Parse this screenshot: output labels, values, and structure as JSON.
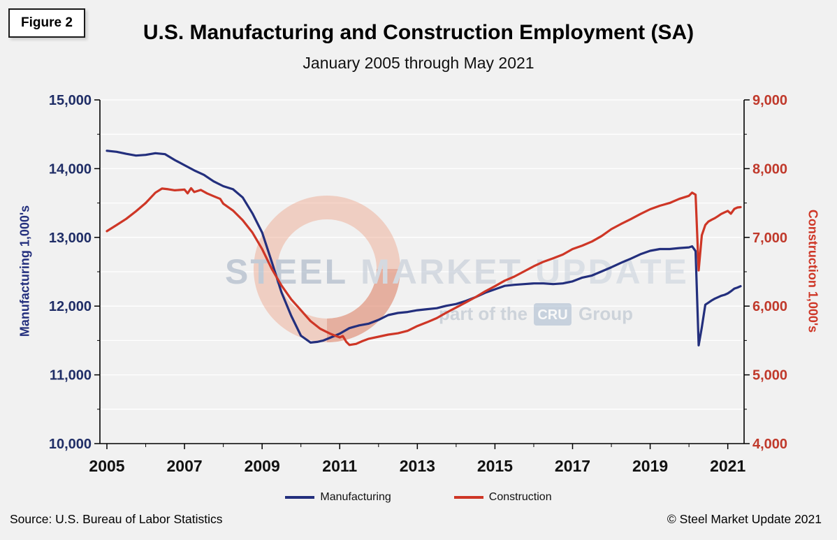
{
  "figure_label": "Figure 2",
  "title": "U.S. Manufacturing and Construction Employment (SA)",
  "subtitle": "January 2005 through May 2021",
  "source": "Source: U.S. Bureau  of Labor Statistics",
  "copyright": "© Steel Market Update 2021",
  "watermark": {
    "word1": "STEEL",
    "word2": "MARKET",
    "word3": "UPDATE",
    "line2_pre": "part of the",
    "line2_box": "CRU",
    "line2_post": "Group"
  },
  "legend": [
    {
      "label": "Manufacturing",
      "color": "#232f7d"
    },
    {
      "label": "Construction",
      "color": "#ce3626"
    }
  ],
  "chart_data": {
    "type": "line",
    "title": "U.S. Manufacturing and Construction Employment (SA)",
    "subtitle": "January 2005 through May 2021",
    "x_min": 2004.82,
    "x_max": 2021.42,
    "x_ticks": [
      2005,
      2007,
      2009,
      2011,
      2013,
      2015,
      2017,
      2019,
      2021
    ],
    "minor_year_start": 2005,
    "minor_year_end": 2021,
    "grid_step": 500,
    "grid_color": "#ffffff",
    "axis_color": "#000000",
    "x_tick_color": "#111111",
    "left_axis": {
      "label": "Manufacturing 1,000's",
      "min": 10000,
      "max": 15000,
      "tick_step": 1000,
      "color": "#1f2d66"
    },
    "right_axis": {
      "label": "Construction 1,000's",
      "min": 4000,
      "max": 9000,
      "tick_step": 1000,
      "color": "#c0392b"
    },
    "series": [
      {
        "name": "Manufacturing",
        "axis": "left",
        "color": "#232f7d",
        "points": [
          [
            2005.0,
            14260
          ],
          [
            2005.25,
            14245
          ],
          [
            2005.5,
            14215
          ],
          [
            2005.75,
            14190
          ],
          [
            2006.0,
            14200
          ],
          [
            2006.25,
            14225
          ],
          [
            2006.5,
            14210
          ],
          [
            2006.75,
            14125
          ],
          [
            2007.0,
            14050
          ],
          [
            2007.25,
            13975
          ],
          [
            2007.5,
            13910
          ],
          [
            2007.75,
            13815
          ],
          [
            2008.0,
            13745
          ],
          [
            2008.25,
            13700
          ],
          [
            2008.5,
            13580
          ],
          [
            2008.75,
            13350
          ],
          [
            2009.0,
            13070
          ],
          [
            2009.25,
            12640
          ],
          [
            2009.5,
            12200
          ],
          [
            2009.75,
            11860
          ],
          [
            2010.0,
            11570
          ],
          [
            2010.25,
            11470
          ],
          [
            2010.42,
            11480
          ],
          [
            2010.58,
            11500
          ],
          [
            2010.75,
            11540
          ],
          [
            2011.0,
            11600
          ],
          [
            2011.25,
            11680
          ],
          [
            2011.5,
            11720
          ],
          [
            2011.75,
            11745
          ],
          [
            2012.0,
            11800
          ],
          [
            2012.25,
            11870
          ],
          [
            2012.5,
            11900
          ],
          [
            2012.75,
            11915
          ],
          [
            2013.0,
            11940
          ],
          [
            2013.25,
            11955
          ],
          [
            2013.5,
            11970
          ],
          [
            2013.75,
            12005
          ],
          [
            2014.0,
            12030
          ],
          [
            2014.25,
            12075
          ],
          [
            2014.5,
            12130
          ],
          [
            2014.75,
            12195
          ],
          [
            2015.0,
            12245
          ],
          [
            2015.25,
            12295
          ],
          [
            2015.5,
            12310
          ],
          [
            2015.75,
            12320
          ],
          [
            2016.0,
            12330
          ],
          [
            2016.25,
            12330
          ],
          [
            2016.5,
            12320
          ],
          [
            2016.75,
            12330
          ],
          [
            2017.0,
            12360
          ],
          [
            2017.25,
            12415
          ],
          [
            2017.5,
            12445
          ],
          [
            2017.75,
            12505
          ],
          [
            2018.0,
            12565
          ],
          [
            2018.25,
            12630
          ],
          [
            2018.5,
            12690
          ],
          [
            2018.75,
            12755
          ],
          [
            2019.0,
            12805
          ],
          [
            2019.25,
            12830
          ],
          [
            2019.5,
            12830
          ],
          [
            2019.75,
            12845
          ],
          [
            2020.0,
            12855
          ],
          [
            2020.08,
            12870
          ],
          [
            2020.17,
            12800
          ],
          [
            2020.25,
            11430
          ],
          [
            2020.33,
            11690
          ],
          [
            2020.42,
            12020
          ],
          [
            2020.5,
            12050
          ],
          [
            2020.58,
            12080
          ],
          [
            2020.67,
            12110
          ],
          [
            2020.75,
            12130
          ],
          [
            2020.83,
            12150
          ],
          [
            2020.92,
            12165
          ],
          [
            2021.0,
            12185
          ],
          [
            2021.08,
            12215
          ],
          [
            2021.17,
            12255
          ],
          [
            2021.25,
            12270
          ],
          [
            2021.33,
            12290
          ]
        ]
      },
      {
        "name": "Construction",
        "axis": "right",
        "color": "#ce3626",
        "points": [
          [
            2005.0,
            7090
          ],
          [
            2005.25,
            7180
          ],
          [
            2005.5,
            7270
          ],
          [
            2005.75,
            7380
          ],
          [
            2006.0,
            7500
          ],
          [
            2006.25,
            7650
          ],
          [
            2006.42,
            7710
          ],
          [
            2006.58,
            7700
          ],
          [
            2006.75,
            7685
          ],
          [
            2007.0,
            7695
          ],
          [
            2007.08,
            7640
          ],
          [
            2007.17,
            7715
          ],
          [
            2007.25,
            7660
          ],
          [
            2007.42,
            7690
          ],
          [
            2007.58,
            7640
          ],
          [
            2007.75,
            7600
          ],
          [
            2007.92,
            7560
          ],
          [
            2008.0,
            7490
          ],
          [
            2008.25,
            7390
          ],
          [
            2008.5,
            7250
          ],
          [
            2008.75,
            7070
          ],
          [
            2009.0,
            6830
          ],
          [
            2009.25,
            6540
          ],
          [
            2009.5,
            6300
          ],
          [
            2009.75,
            6100
          ],
          [
            2010.0,
            5940
          ],
          [
            2010.25,
            5780
          ],
          [
            2010.5,
            5670
          ],
          [
            2010.75,
            5600
          ],
          [
            2011.0,
            5545
          ],
          [
            2011.08,
            5565
          ],
          [
            2011.17,
            5480
          ],
          [
            2011.25,
            5435
          ],
          [
            2011.42,
            5450
          ],
          [
            2011.58,
            5490
          ],
          [
            2011.75,
            5525
          ],
          [
            2012.0,
            5555
          ],
          [
            2012.25,
            5585
          ],
          [
            2012.5,
            5605
          ],
          [
            2012.75,
            5640
          ],
          [
            2013.0,
            5710
          ],
          [
            2013.25,
            5765
          ],
          [
            2013.5,
            5825
          ],
          [
            2013.75,
            5905
          ],
          [
            2014.0,
            5980
          ],
          [
            2014.25,
            6055
          ],
          [
            2014.5,
            6130
          ],
          [
            2014.75,
            6215
          ],
          [
            2015.0,
            6290
          ],
          [
            2015.25,
            6370
          ],
          [
            2015.5,
            6430
          ],
          [
            2015.75,
            6505
          ],
          [
            2016.0,
            6580
          ],
          [
            2016.25,
            6645
          ],
          [
            2016.5,
            6695
          ],
          [
            2016.75,
            6750
          ],
          [
            2017.0,
            6830
          ],
          [
            2017.25,
            6880
          ],
          [
            2017.5,
            6940
          ],
          [
            2017.75,
            7020
          ],
          [
            2018.0,
            7120
          ],
          [
            2018.25,
            7195
          ],
          [
            2018.5,
            7265
          ],
          [
            2018.75,
            7340
          ],
          [
            2019.0,
            7410
          ],
          [
            2019.25,
            7460
          ],
          [
            2019.5,
            7500
          ],
          [
            2019.75,
            7560
          ],
          [
            2020.0,
            7605
          ],
          [
            2020.08,
            7650
          ],
          [
            2020.17,
            7620
          ],
          [
            2020.25,
            6520
          ],
          [
            2020.33,
            7030
          ],
          [
            2020.42,
            7180
          ],
          [
            2020.5,
            7230
          ],
          [
            2020.58,
            7255
          ],
          [
            2020.67,
            7280
          ],
          [
            2020.75,
            7310
          ],
          [
            2020.83,
            7340
          ],
          [
            2020.92,
            7365
          ],
          [
            2021.0,
            7385
          ],
          [
            2021.08,
            7345
          ],
          [
            2021.17,
            7415
          ],
          [
            2021.25,
            7435
          ],
          [
            2021.33,
            7440
          ]
        ]
      }
    ]
  }
}
